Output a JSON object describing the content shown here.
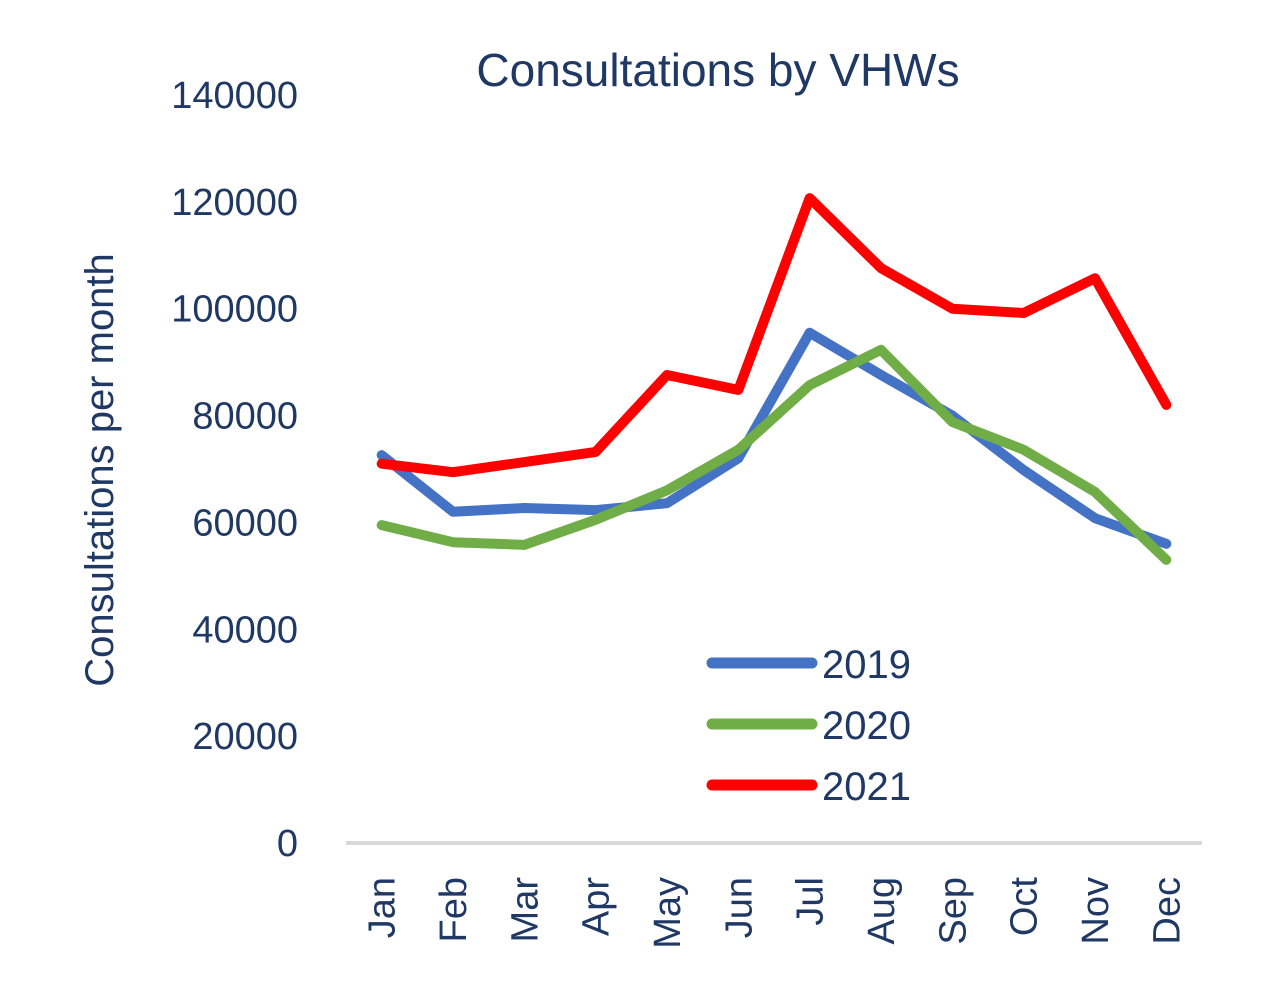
{
  "chart_data": {
    "type": "line",
    "title": "Consultations by VHWs",
    "xlabel": "",
    "ylabel": "Consultations per month",
    "categories": [
      "Jan",
      "Feb",
      "Mar",
      "Apr",
      "May",
      "Jun",
      "Jul",
      "Aug",
      "Sep",
      "Oct",
      "Nov",
      "Dec"
    ],
    "ylim": [
      0,
      140000
    ],
    "yticks": [
      0,
      20000,
      40000,
      60000,
      80000,
      100000,
      120000,
      140000
    ],
    "ytick_labels": [
      "0",
      "20000",
      "40000",
      "60000",
      "80000",
      "100000",
      "120000",
      "140000"
    ],
    "grid": false,
    "legend_position": "bottom-center",
    "series": [
      {
        "name": "2019",
        "color": "#4472c4",
        "values": [
          72600,
          62000,
          62700,
          62300,
          63600,
          72000,
          95500,
          87600,
          80000,
          69800,
          60800,
          56000
        ]
      },
      {
        "name": "2020",
        "color": "#70ad47",
        "values": [
          59500,
          56300,
          55800,
          60500,
          66000,
          73600,
          85700,
          92300,
          78800,
          73600,
          65700,
          53000
        ]
      },
      {
        "name": "2021",
        "color": "#ff0000",
        "values": [
          71000,
          69400,
          71300,
          73200,
          87600,
          84800,
          120700,
          107600,
          100000,
          99200,
          105700,
          82000
        ]
      }
    ]
  }
}
